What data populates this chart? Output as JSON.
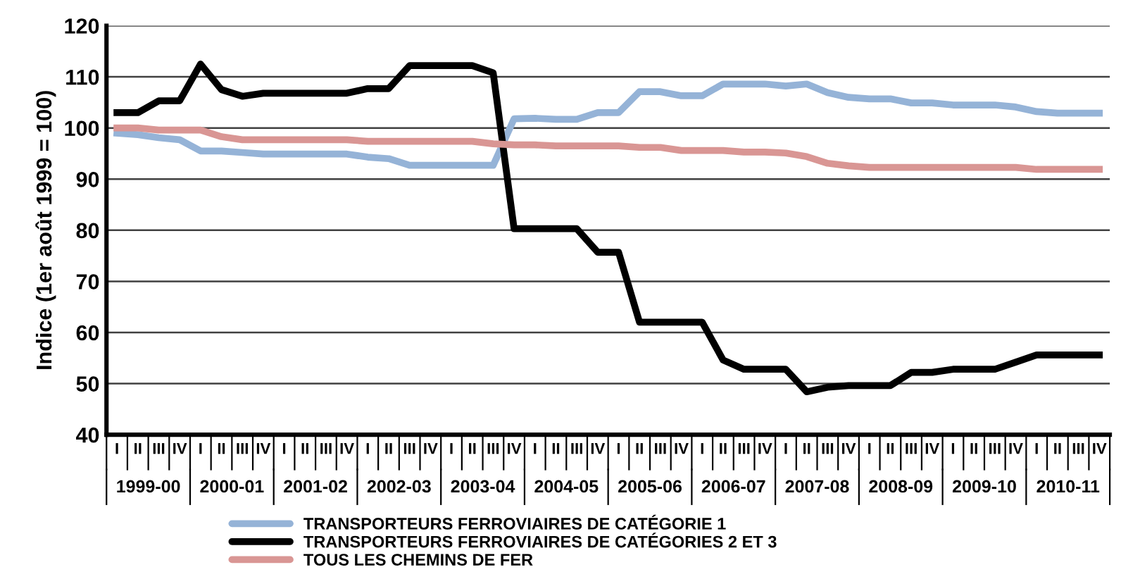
{
  "chart_data": {
    "type": "line",
    "ylabel": "Indice (1er août 1999 = 100)",
    "categories": [
      "I",
      "II",
      "III",
      "IV",
      "I",
      "II",
      "III",
      "IV",
      "I",
      "II",
      "III",
      "IV",
      "I",
      "II",
      "III",
      "IV",
      "I",
      "II",
      "III",
      "IV",
      "I",
      "II",
      "III",
      "IV",
      "I",
      "II",
      "III",
      "IV",
      "I",
      "II",
      "III",
      "IV",
      "I",
      "II",
      "III",
      "IV",
      "I",
      "II",
      "III",
      "IV",
      "I",
      "II",
      "III",
      "IV",
      "I",
      "II",
      "III",
      "IV"
    ],
    "annotations": [
      "1999-00",
      "2000-01",
      "2001-02",
      "2002-03",
      "2003-04",
      "2004-05",
      "2005-06",
      "2006-07",
      "2007-08",
      "2008-09",
      "2009-10",
      "2010-11"
    ],
    "series": [
      {
        "name": "TRANSPORTEURS FERROVIAIRES DE CATÉGORIE 1",
        "color": "#95b3d7",
        "values": [
          99,
          98.7,
          98.1,
          97.7,
          95.5,
          95.5,
          95.2,
          94.9,
          94.9,
          94.9,
          94.9,
          94.9,
          94.3,
          94.0,
          92.7,
          92.7,
          92.7,
          92.7,
          92.7,
          101.8,
          101.9,
          101.7,
          101.7,
          103,
          103,
          107.1,
          107.1,
          106.3,
          106.3,
          108.6,
          108.6,
          108.6,
          108.2,
          108.6,
          106.9,
          106,
          105.7,
          105.7,
          104.9,
          104.9,
          104.5,
          104.5,
          104.5,
          104.1,
          103.2,
          102.9,
          102.9,
          102.9
        ]
      },
      {
        "name": "TRANSPORTEURS FERROVIAIRES DE CATÉGORIES 2 ET 3",
        "color": "#000000",
        "values": [
          103,
          103,
          105.3,
          105.3,
          112.5,
          107.5,
          106.2,
          106.8,
          106.8,
          106.8,
          106.8,
          106.8,
          107.7,
          107.7,
          112.2,
          112.2,
          112.2,
          112.2,
          110.8,
          80.3,
          80.3,
          80.3,
          80.3,
          75.7,
          75.7,
          62,
          62,
          62,
          62,
          54.6,
          52.8,
          52.8,
          52.8,
          48.4,
          49.3,
          49.6,
          49.6,
          49.6,
          52.2,
          52.2,
          52.8,
          52.8,
          52.8,
          54.2,
          55.6,
          55.6,
          55.6,
          55.6
        ]
      },
      {
        "name": "TOUS LES CHEMINS DE FER",
        "color": "#d99694",
        "values": [
          100,
          100,
          99.6,
          99.6,
          99.6,
          98.3,
          97.7,
          97.7,
          97.7,
          97.7,
          97.7,
          97.7,
          97.4,
          97.4,
          97.4,
          97.4,
          97.4,
          97.4,
          96.9,
          96.7,
          96.7,
          96.5,
          96.5,
          96.5,
          96.5,
          96.2,
          96.2,
          95.6,
          95.6,
          95.6,
          95.3,
          95.3,
          95.1,
          94.4,
          93.1,
          92.6,
          92.3,
          92.3,
          92.3,
          92.3,
          92.3,
          92.3,
          92.3,
          92.3,
          91.9,
          91.9,
          91.9,
          91.9
        ]
      }
    ],
    "ylim": [
      40,
      120
    ],
    "yticks": [
      40,
      50,
      60,
      70,
      80,
      90,
      100,
      110,
      120
    ],
    "grid": "y",
    "legend": "bottom",
    "marker": "none",
    "line_style": "solid"
  }
}
